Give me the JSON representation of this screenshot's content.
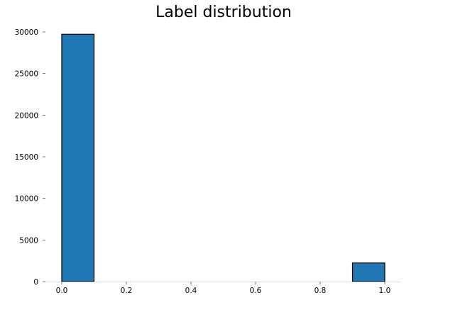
{
  "chart_data": {
    "type": "bar",
    "title": "Label distribution",
    "xlabel": "",
    "ylabel": "",
    "x_ticks": [
      "0.0",
      "0.2",
      "0.4",
      "0.6",
      "0.8",
      "1.0"
    ],
    "y_ticks": [
      "0",
      "5000",
      "10000",
      "15000",
      "20000",
      "25000",
      "30000"
    ],
    "xlim": [
      0.0,
      1.0
    ],
    "ylim": [
      0,
      30000
    ],
    "bins": [
      {
        "x0": 0.0,
        "x1": 0.1,
        "value": 29720
      },
      {
        "x0": 0.9,
        "x1": 1.0,
        "value": 2242
      }
    ],
    "colors": {
      "bar_fill": "#1f77b4",
      "bar_edge": "#000000",
      "axis": "#d9d9d9",
      "text": "#000000"
    },
    "grid": false,
    "legend": "none"
  }
}
